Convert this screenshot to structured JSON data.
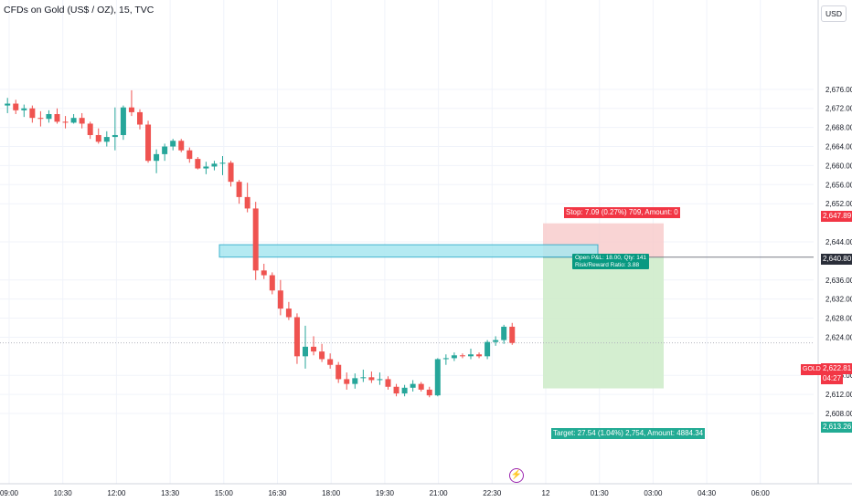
{
  "header": {
    "title": "CFDs on Gold (US$ / OZ), 15, TVC",
    "currency": "USD"
  },
  "colors": {
    "up": "#26a69a",
    "down": "#ef5350",
    "grid": "#f0f3fa",
    "stop_zone": "#f7c9c9",
    "target_zone": "#cfeccb",
    "zone_box": "#a8e7f0",
    "zone_border": "#22a8c7"
  },
  "price_scale": {
    "labels": [
      "2,676.00",
      "2,672.00",
      "2,668.00",
      "2,664.00",
      "2,660.00",
      "2,656.00",
      "2,652.00",
      "2,644.00",
      "2,636.00",
      "2,632.00",
      "2,628.00",
      "2,624.00",
      "2,616.00",
      "2,612.00",
      "2,608.00"
    ],
    "gold_label": "GOLD",
    "gold_price": "2,622.81",
    "countdown": "04:27",
    "stop_price": "2,647.89",
    "entry_price": "2,640.80",
    "target_price": "2,613.26"
  },
  "time_axis": {
    "labels": [
      "09:00",
      "10:30",
      "12:00",
      "13:30",
      "15:00",
      "16:30",
      "18:00",
      "19:30",
      "21:00",
      "22:30",
      "12",
      "01:30",
      "03:00",
      "04:30",
      "06:00"
    ]
  },
  "position_tool": {
    "stop_text": "Stop: 7.09 (0.27%) 709, Amount: 0",
    "open_pl_text": "Open P&L: 18.00, Qty: 141",
    "risk_reward_text": "Risk/Reward Ratio: 3.88",
    "target_text": "Target: 27.54 (1.04%) 2,754, Amount: 4884.34"
  },
  "chart_data": {
    "type": "candlestick",
    "title": "CFDs on Gold (US$ / OZ), 15, TVC",
    "interval": "15",
    "ylim": [
      2606,
      2680
    ],
    "candles": [
      {
        "open": 2672.6,
        "high": 2674.2,
        "low": 2671.0,
        "close": 2673.0
      },
      {
        "open": 2673.0,
        "high": 2673.8,
        "low": 2670.8,
        "close": 2671.6
      },
      {
        "open": 2671.6,
        "high": 2672.8,
        "low": 2670.2,
        "close": 2672.0
      },
      {
        "open": 2672.0,
        "high": 2672.6,
        "low": 2669.0,
        "close": 2670.0
      },
      {
        "open": 2670.0,
        "high": 2671.4,
        "low": 2668.2,
        "close": 2669.8
      },
      {
        "open": 2669.8,
        "high": 2671.6,
        "low": 2669.0,
        "close": 2670.8
      },
      {
        "open": 2670.8,
        "high": 2672.0,
        "low": 2668.8,
        "close": 2669.2
      },
      {
        "open": 2669.2,
        "high": 2670.4,
        "low": 2667.8,
        "close": 2669.0
      },
      {
        "open": 2669.0,
        "high": 2670.8,
        "low": 2668.8,
        "close": 2670.0
      },
      {
        "open": 2670.0,
        "high": 2671.0,
        "low": 2667.8,
        "close": 2668.8
      },
      {
        "open": 2668.8,
        "high": 2669.2,
        "low": 2665.6,
        "close": 2666.4
      },
      {
        "open": 2666.4,
        "high": 2667.8,
        "low": 2664.6,
        "close": 2665.0
      },
      {
        "open": 2665.0,
        "high": 2667.2,
        "low": 2664.0,
        "close": 2666.0
      },
      {
        "open": 2666.0,
        "high": 2672.2,
        "low": 2663.2,
        "close": 2666.4
      },
      {
        "open": 2666.4,
        "high": 2672.6,
        "low": 2665.4,
        "close": 2672.2
      },
      {
        "open": 2672.2,
        "high": 2675.8,
        "low": 2670.4,
        "close": 2671.2
      },
      {
        "open": 2671.2,
        "high": 2671.8,
        "low": 2667.6,
        "close": 2668.6
      },
      {
        "open": 2668.6,
        "high": 2669.4,
        "low": 2660.6,
        "close": 2661.0
      },
      {
        "open": 2661.0,
        "high": 2663.4,
        "low": 2658.4,
        "close": 2662.4
      },
      {
        "open": 2662.4,
        "high": 2664.6,
        "low": 2661.0,
        "close": 2664.0
      },
      {
        "open": 2664.0,
        "high": 2665.6,
        "low": 2663.2,
        "close": 2665.2
      },
      {
        "open": 2665.2,
        "high": 2665.6,
        "low": 2662.8,
        "close": 2663.2
      },
      {
        "open": 2663.2,
        "high": 2663.8,
        "low": 2660.6,
        "close": 2661.4
      },
      {
        "open": 2661.4,
        "high": 2661.8,
        "low": 2659.2,
        "close": 2659.4
      },
      {
        "open": 2659.4,
        "high": 2660.8,
        "low": 2658.2,
        "close": 2659.8
      },
      {
        "open": 2659.8,
        "high": 2661.0,
        "low": 2659.0,
        "close": 2660.4
      },
      {
        "open": 2660.4,
        "high": 2662.0,
        "low": 2658.0,
        "close": 2660.6
      },
      {
        "open": 2660.6,
        "high": 2661.0,
        "low": 2655.6,
        "close": 2656.6
      },
      {
        "open": 2656.6,
        "high": 2657.0,
        "low": 2652.0,
        "close": 2653.4
      },
      {
        "open": 2653.4,
        "high": 2656.4,
        "low": 2650.2,
        "close": 2651.0
      },
      {
        "open": 2651.0,
        "high": 2652.4,
        "low": 2636.0,
        "close": 2638.0
      },
      {
        "open": 2638.0,
        "high": 2639.4,
        "low": 2636.2,
        "close": 2637.0
      },
      {
        "open": 2637.0,
        "high": 2637.6,
        "low": 2633.0,
        "close": 2633.8
      },
      {
        "open": 2633.8,
        "high": 2636.0,
        "low": 2628.6,
        "close": 2630.0
      },
      {
        "open": 2630.0,
        "high": 2631.4,
        "low": 2627.6,
        "close": 2628.2
      },
      {
        "open": 2628.2,
        "high": 2629.0,
        "low": 2618.4,
        "close": 2620.0
      },
      {
        "open": 2620.0,
        "high": 2626.4,
        "low": 2617.4,
        "close": 2622.0
      },
      {
        "open": 2622.0,
        "high": 2624.2,
        "low": 2620.2,
        "close": 2621.0
      },
      {
        "open": 2621.0,
        "high": 2622.6,
        "low": 2618.8,
        "close": 2619.4
      },
      {
        "open": 2619.4,
        "high": 2620.6,
        "low": 2617.4,
        "close": 2618.2
      },
      {
        "open": 2618.2,
        "high": 2618.8,
        "low": 2614.4,
        "close": 2615.2
      },
      {
        "open": 2615.2,
        "high": 2616.6,
        "low": 2613.0,
        "close": 2614.2
      },
      {
        "open": 2614.2,
        "high": 2616.4,
        "low": 2613.2,
        "close": 2615.4
      },
      {
        "open": 2615.4,
        "high": 2617.2,
        "low": 2614.6,
        "close": 2615.6
      },
      {
        "open": 2615.6,
        "high": 2616.8,
        "low": 2614.4,
        "close": 2615.0
      },
      {
        "open": 2615.0,
        "high": 2616.6,
        "low": 2614.0,
        "close": 2615.2
      },
      {
        "open": 2615.2,
        "high": 2615.8,
        "low": 2613.0,
        "close": 2613.6
      },
      {
        "open": 2613.6,
        "high": 2614.2,
        "low": 2611.6,
        "close": 2612.2
      },
      {
        "open": 2612.2,
        "high": 2614.0,
        "low": 2611.6,
        "close": 2613.4
      },
      {
        "open": 2613.4,
        "high": 2615.0,
        "low": 2612.6,
        "close": 2614.2
      },
      {
        "open": 2614.2,
        "high": 2614.6,
        "low": 2612.6,
        "close": 2613.0
      },
      {
        "open": 2613.0,
        "high": 2613.6,
        "low": 2611.4,
        "close": 2611.8
      },
      {
        "open": 2611.8,
        "high": 2619.6,
        "low": 2611.6,
        "close": 2619.4
      },
      {
        "open": 2619.4,
        "high": 2620.4,
        "low": 2618.2,
        "close": 2619.6
      },
      {
        "open": 2619.6,
        "high": 2620.8,
        "low": 2619.0,
        "close": 2620.2
      },
      {
        "open": 2620.2,
        "high": 2620.6,
        "low": 2619.6,
        "close": 2620.0
      },
      {
        "open": 2620.0,
        "high": 2621.6,
        "low": 2619.4,
        "close": 2620.4
      },
      {
        "open": 2620.4,
        "high": 2620.8,
        "low": 2619.6,
        "close": 2620.0
      },
      {
        "open": 2620.0,
        "high": 2623.4,
        "low": 2619.4,
        "close": 2623.0
      },
      {
        "open": 2623.0,
        "high": 2624.2,
        "low": 2622.2,
        "close": 2623.4
      },
      {
        "open": 2623.4,
        "high": 2626.6,
        "low": 2622.6,
        "close": 2626.2
      },
      {
        "open": 2626.2,
        "high": 2627.0,
        "low": 2622.4,
        "close": 2622.8
      }
    ],
    "price_zone": {
      "low": 2640.8,
      "high": 2643.4
    },
    "position": {
      "entry": 2640.8,
      "stop": 2647.89,
      "target": 2613.26
    },
    "last_price": 2622.81
  }
}
